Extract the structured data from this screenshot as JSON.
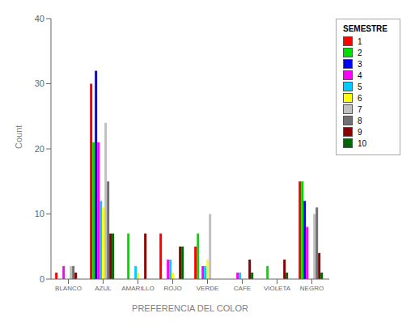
{
  "chart_data": {
    "type": "bar",
    "xlabel": "PREFERENCIA DEL COLOR",
    "ylabel": "Count",
    "legend_title": "SEMESTRE",
    "categories": [
      "BLANCO",
      "AZUL",
      "AMARILLO",
      "ROJO",
      "VERDE",
      "CAFE",
      "VIOLETA",
      "NEGRO"
    ],
    "series": [
      {
        "name": "1",
        "color": "#ff0000",
        "values": [
          1,
          30,
          0,
          7,
          5,
          0,
          0,
          15
        ]
      },
      {
        "name": "2",
        "color": "#00dd00",
        "values": [
          0,
          21,
          7,
          0,
          7,
          0,
          2,
          15
        ]
      },
      {
        "name": "3",
        "color": "#0000ff",
        "values": [
          0,
          32,
          0,
          0,
          0,
          0,
          0,
          12
        ]
      },
      {
        "name": "4",
        "color": "#ff00ff",
        "values": [
          2,
          21,
          0,
          3,
          2,
          1,
          0,
          8
        ]
      },
      {
        "name": "5",
        "color": "#00ccff",
        "values": [
          0,
          12,
          2,
          3,
          2,
          1,
          0,
          0
        ]
      },
      {
        "name": "6",
        "color": "#ffff00",
        "values": [
          0,
          11,
          1,
          1,
          3,
          0,
          0,
          0
        ]
      },
      {
        "name": "7",
        "color": "#c0c0c0",
        "values": [
          2,
          24,
          0,
          0,
          10,
          0,
          0,
          10
        ]
      },
      {
        "name": "8",
        "color": "#707070",
        "values": [
          2,
          15,
          0,
          0,
          0,
          0,
          0,
          11
        ]
      },
      {
        "name": "9",
        "color": "#8b0000",
        "values": [
          1,
          7,
          7,
          5,
          0,
          3,
          3,
          4
        ]
      },
      {
        "name": "10",
        "color": "#006600",
        "values": [
          0,
          7,
          0,
          5,
          0,
          1,
          1,
          1
        ]
      }
    ],
    "ylim": [
      0,
      40
    ],
    "yticks": [
      0,
      10,
      20,
      30,
      40
    ],
    "grid": false,
    "legend": "right"
  }
}
